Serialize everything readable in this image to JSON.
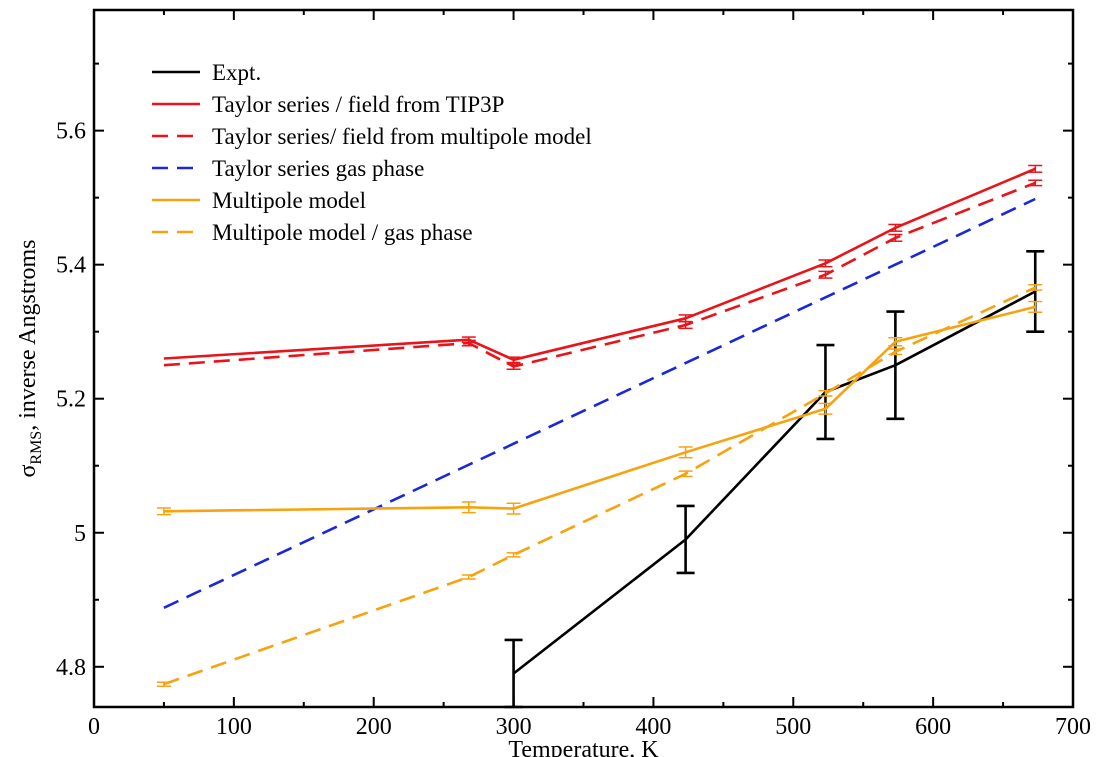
{
  "chart_data": {
    "type": "line",
    "title": "",
    "xlabel": "Temperature, K",
    "ylabel": {
      "symbol": "σ",
      "subscript": "RMS",
      "rest": ", inverse Angstroms"
    },
    "xlim": [
      0,
      700
    ],
    "ylim": [
      4.74,
      5.78
    ],
    "xticks": [
      0,
      100,
      200,
      300,
      400,
      500,
      600,
      700
    ],
    "xtick_labels": [
      "0",
      "100",
      "200",
      "300",
      "400",
      "500",
      "600",
      "700"
    ],
    "yticks": [
      4.8,
      5.0,
      5.2,
      5.4,
      5.6
    ],
    "ytick_labels": [
      "4.8",
      "5",
      "5.2",
      "5.4",
      "5.6"
    ],
    "grid": false,
    "legend_position": "top-left",
    "series": [
      {
        "name": "Expt.",
        "color": "#000000",
        "dash": "solid",
        "x": [
          300,
          423,
          523,
          573,
          673
        ],
        "y": [
          4.79,
          4.99,
          5.21,
          5.25,
          5.36
        ],
        "err": [
          0.05,
          0.05,
          0.07,
          0.08,
          0.06
        ]
      },
      {
        "name": "Taylor series / field from TIP3P",
        "color": "#e8141a",
        "dash": "solid",
        "x": [
          50,
          268,
          300,
          423,
          523,
          573,
          673
        ],
        "y": [
          5.26,
          5.288,
          5.258,
          5.32,
          5.402,
          5.455,
          5.543
        ],
        "err": [
          0,
          0.004,
          0.004,
          0.005,
          0.005,
          0.005,
          0.005
        ]
      },
      {
        "name": "Taylor series/ field from multipole model",
        "color": "#e8141a",
        "dash": "dashed",
        "x": [
          50,
          268,
          300,
          423,
          523,
          573,
          673
        ],
        "y": [
          5.25,
          5.283,
          5.248,
          5.31,
          5.385,
          5.44,
          5.522
        ],
        "err": [
          0,
          0.004,
          0.004,
          0.005,
          0.005,
          0.005,
          0.004
        ]
      },
      {
        "name": "Taylor series gas phase",
        "color": "#1a28d6",
        "dash": "dashed",
        "x": [
          50,
          673
        ],
        "y": [
          4.888,
          5.498
        ],
        "err": [
          0,
          0
        ]
      },
      {
        "name": "Multipole model",
        "color": "#f7a20f",
        "dash": "solid",
        "x": [
          50,
          268,
          300,
          423,
          523,
          573,
          673
        ],
        "y": [
          5.032,
          5.038,
          5.036,
          5.12,
          5.185,
          5.285,
          5.337
        ],
        "err": [
          0.005,
          0.008,
          0.008,
          0.008,
          0.008,
          0.006,
          0.008
        ]
      },
      {
        "name": "Multipole model / gas phase",
        "color": "#f7a20f",
        "dash": "dashed",
        "x": [
          50,
          268,
          300,
          423,
          523,
          573,
          673
        ],
        "y": [
          4.774,
          4.934,
          4.967,
          5.088,
          5.208,
          5.27,
          5.366
        ],
        "err": [
          0.003,
          0.003,
          0.003,
          0.004,
          0.004,
          0.004,
          0.004
        ]
      }
    ]
  }
}
